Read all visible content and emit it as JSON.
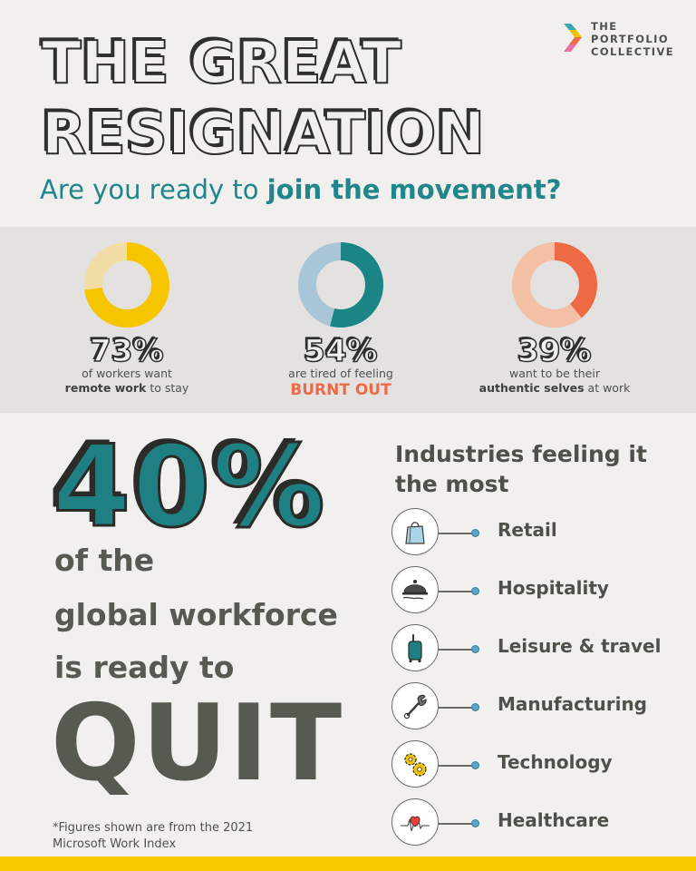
{
  "logo": {
    "lines": [
      "THE",
      "PORTFOLIO",
      "COLLECTIVE"
    ],
    "colors": [
      "#3aa6a8",
      "#f4c400",
      "#ee6c4d",
      "#e76fa3"
    ]
  },
  "title": {
    "line1": "THE GREAT",
    "line2": "RESIGNATION"
  },
  "subtitle": {
    "prefix": "Are you ready to ",
    "emphasis": "join the movement?"
  },
  "stats": [
    {
      "percent": "73%",
      "value": 73,
      "line1": "of workers want",
      "line2_bold": "remote work",
      "line2_rest": " to stay",
      "color_main": "#f7c400",
      "color_rest": "#f2dda6"
    },
    {
      "percent": "54%",
      "value": 54,
      "line1": "are tired of feeling",
      "highlight": "BURNT OUT",
      "color_main": "#1b8586",
      "color_rest": "#a8c6d8"
    },
    {
      "percent": "39%",
      "value": 39,
      "line1": "want to be their",
      "line2_bold": "authentic selves",
      "line2_rest": " at work",
      "color_main": "#ee6a44",
      "color_rest": "#f3bfa5"
    }
  ],
  "big_stat": {
    "percent": "40%",
    "line1": "of the",
    "line2": "global workforce",
    "line3": "is ready to",
    "quit": "QUIT"
  },
  "industries": {
    "title_line1": "Industries feeling it",
    "title_line2": "the most",
    "items": [
      {
        "label": "Retail",
        "icon": "shopping-bag-icon"
      },
      {
        "label": "Hospitality",
        "icon": "cloche-icon"
      },
      {
        "label": "Leisure & travel",
        "icon": "suitcase-icon"
      },
      {
        "label": "Manufacturing",
        "icon": "wrench-icon"
      },
      {
        "label": "Technology",
        "icon": "gears-icon"
      },
      {
        "label": "Healthcare",
        "icon": "heartbeat-icon"
      }
    ]
  },
  "footnote": {
    "line1": "*Figures shown are from the 2021",
    "line2": "Microsoft Work Index"
  },
  "accent_colors": {
    "teal": "#1e8083",
    "yellow": "#f8c800",
    "orange": "#ed6a47"
  }
}
